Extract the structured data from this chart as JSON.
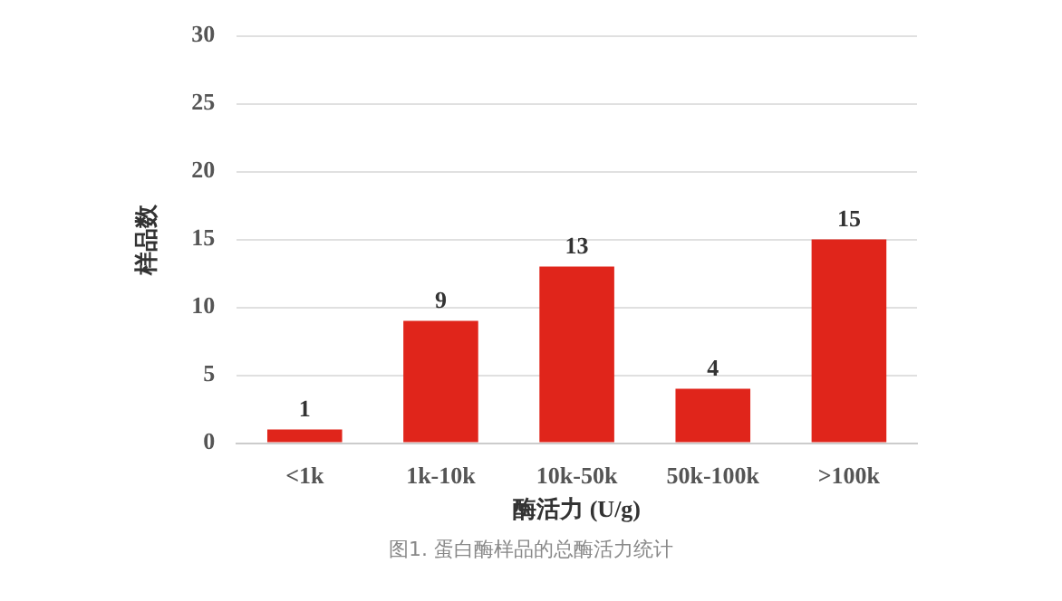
{
  "chart_data": {
    "type": "bar",
    "xlabel": "酶活力 (U/g)",
    "ylabel": "样品数",
    "categories": [
      "<1k",
      "1k-10k",
      "10k-50k",
      "50k-100k",
      ">100k"
    ],
    "values": [
      1,
      9,
      13,
      4,
      15
    ],
    "color": "#e0251b",
    "ylim": [
      0,
      30
    ],
    "yticks": [
      0,
      5,
      10,
      15,
      20,
      25,
      30
    ],
    "grid": "y",
    "data_labels": true,
    "legend": false,
    "annotations": [
      "图1. 蛋白酶样品的总酶活力统计"
    ]
  }
}
